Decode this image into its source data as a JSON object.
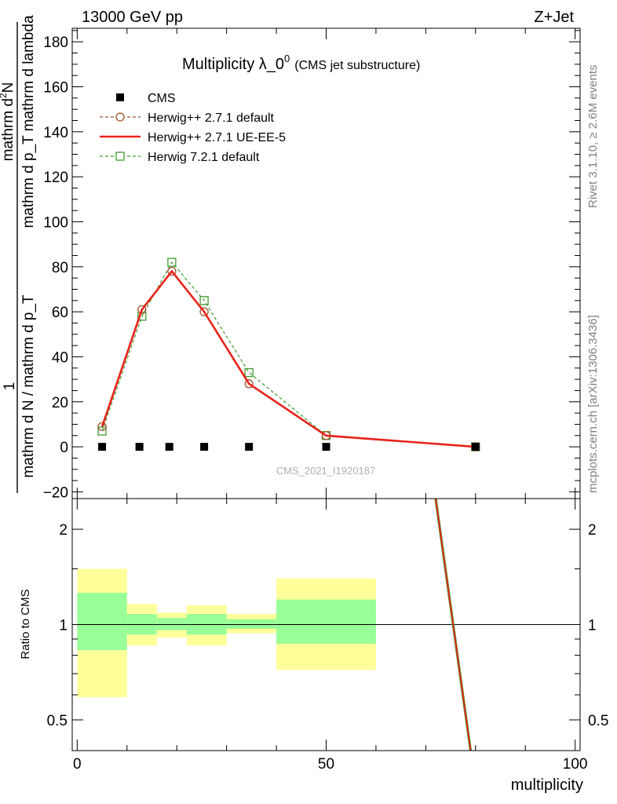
{
  "header": {
    "left": "13000 GeV pp",
    "right": "Z+Jet"
  },
  "side_labels": {
    "rivet": "Rivet 3.1.10, ≥ 2.6M events",
    "mcplots": "mcplots.cern.ch [arXiv:1306.3436]"
  },
  "watermark": "CMS_2021_I1920187",
  "colors": {
    "cms": "#000000",
    "herwig_default": "#a0522d",
    "herwig_ue": "#e8231a",
    "herwig7": "#3f9b2f",
    "band_yellow": "#ffff99",
    "band_green": "#99ff99"
  },
  "chart_data": [
    {
      "type": "line",
      "title": "Multiplicity λ_0",
      "title_sup": "0",
      "subtitle": "(CMS jet substructure)",
      "ylabel_numerator": "mathrm d²N",
      "ylabel_numerator_parts": [
        "mathrm d",
        "2",
        "N"
      ],
      "ylabel_denominator": "mathrm d p_T mathrm d lambda",
      "ylabel_prefix_one": "1",
      "ylabel_prefix_denominator": "mathrm d N / mathrm d p_T",
      "ylim": [
        -23,
        186
      ],
      "yticks": [
        -20,
        0,
        20,
        40,
        60,
        80,
        100,
        120,
        140,
        160,
        180
      ],
      "xlim": [
        -1,
        101
      ],
      "legend_position": "top-left",
      "legend": [
        {
          "key": "cms",
          "label": "CMS"
        },
        {
          "key": "herwig_default",
          "label": "Herwig++ 2.7.1 default"
        },
        {
          "key": "herwig_ue",
          "label": "Herwig++ 2.7.1 UE-EE-5"
        },
        {
          "key": "herwig7",
          "label": "Herwig 7.2.1 default"
        }
      ],
      "series": [
        {
          "name": "CMS",
          "key": "cms",
          "x": [
            5,
            12.5,
            18.5,
            25.5,
            34.5,
            50,
            80
          ],
          "y": [
            0,
            0,
            0,
            0,
            0,
            0,
            0
          ]
        },
        {
          "name": "Herwig++ 2.7.1 default",
          "key": "herwig_default",
          "x": [
            5,
            13,
            19,
            25.5,
            34.5,
            50,
            80
          ],
          "y": [
            9,
            61,
            78,
            60,
            28,
            5,
            0
          ]
        },
        {
          "name": "Herwig++ 2.7.1 UE-EE-5",
          "key": "herwig_ue",
          "x": [
            5,
            13,
            19,
            25.5,
            34.5,
            50,
            80
          ],
          "y": [
            9,
            61,
            78,
            60,
            28,
            5,
            0
          ]
        },
        {
          "name": "Herwig 7.2.1 default",
          "key": "herwig7",
          "x": [
            5,
            13,
            19,
            25.5,
            34.5,
            50,
            80
          ],
          "y": [
            7,
            58,
            82,
            65,
            33,
            5,
            0
          ]
        }
      ]
    },
    {
      "type": "line",
      "ylabel": "Ratio to CMS",
      "xlabel": "multiplicity",
      "ylim": [
        0.4,
        2.5
      ],
      "yscale": "log",
      "yticks": [
        0.5,
        1,
        2
      ],
      "ytick_labels": [
        "0.5",
        "1",
        "2"
      ],
      "xlim": [
        -1,
        101
      ],
      "xticks": [
        0,
        50,
        100
      ],
      "xtick_labels": [
        "0",
        "50",
        "100"
      ],
      "reference": 1,
      "bands": [
        {
          "x0": 0,
          "x1": 10,
          "yellow": [
            0.59,
            1.5
          ],
          "green": [
            0.83,
            1.26
          ]
        },
        {
          "x0": 10,
          "x1": 16,
          "yellow": [
            0.86,
            1.16
          ],
          "green": [
            0.93,
            1.08
          ]
        },
        {
          "x0": 16,
          "x1": 22,
          "yellow": [
            0.91,
            1.09
          ],
          "green": [
            0.96,
            1.05
          ]
        },
        {
          "x0": 22,
          "x1": 30,
          "yellow": [
            0.86,
            1.15
          ],
          "green": [
            0.93,
            1.08
          ]
        },
        {
          "x0": 30,
          "x1": 40,
          "yellow": [
            0.94,
            1.08
          ],
          "green": [
            0.97,
            1.04
          ]
        },
        {
          "x0": 40,
          "x1": 60,
          "yellow": [
            0.72,
            1.4
          ],
          "green": [
            0.87,
            1.2
          ]
        }
      ],
      "series": [
        {
          "name": "Herwig++ 2.7.1 UE-EE-5",
          "key": "herwig_ue",
          "x": [
            72,
            79
          ],
          "y": [
            2.5,
            0.4
          ]
        }
      ]
    }
  ]
}
